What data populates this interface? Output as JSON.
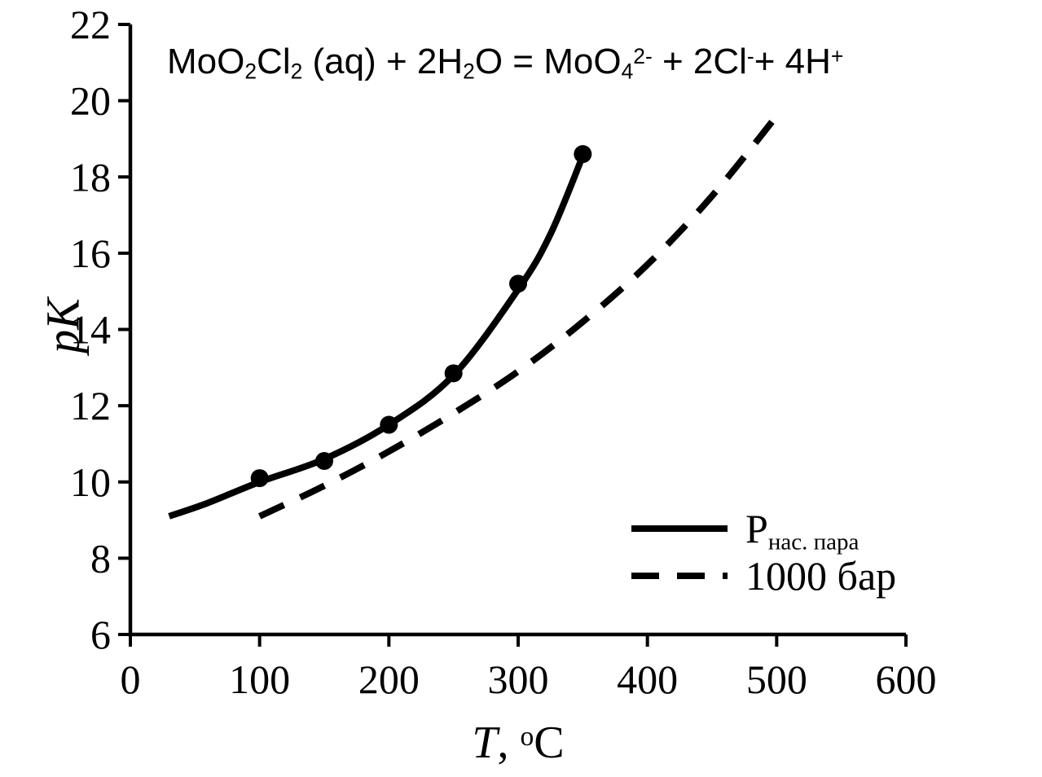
{
  "figure": {
    "background": "#ffffff",
    "ink_color": "#000000"
  },
  "chart_data": {
    "type": "line+scatter",
    "title_text": "MoO2Cl2 (aq) + 2H2O = MoO4^2- + 2Cl^- + 4H^+",
    "title_rich": [
      {
        "text": "MoO"
      },
      {
        "text": "2",
        "style": "sub"
      },
      {
        "text": "Cl"
      },
      {
        "text": "2",
        "style": "sub"
      },
      {
        "text": " (aq) + 2H"
      },
      {
        "text": "2",
        "style": "sub"
      },
      {
        "text": "O = MoO"
      },
      {
        "text": "4",
        "style": "sub"
      },
      {
        "text": "2-",
        "style": "sup"
      },
      {
        "text": " + 2Cl"
      },
      {
        "text": "-",
        "style": "sup"
      },
      {
        "text": "+ 4H"
      },
      {
        "text": "+",
        "style": "sup"
      }
    ],
    "xlabel_text": "T, °C",
    "xlabel_rich": [
      {
        "text": "T",
        "style": "italic"
      },
      {
        "text": ", "
      },
      {
        "text": "o",
        "style": "sup"
      },
      {
        "text": "C"
      }
    ],
    "ylabel": "pK",
    "xlim": [
      0,
      600
    ],
    "ylim": [
      6,
      22
    ],
    "xticks": [
      0,
      100,
      200,
      300,
      400,
      500,
      600
    ],
    "yticks": [
      6,
      8,
      10,
      12,
      14,
      16,
      18,
      20,
      22
    ],
    "grid": false,
    "legend_position": "lower right",
    "series": [
      {
        "name": "P нас. пара",
        "legend_rich": [
          {
            "text": "P"
          },
          {
            "text": "нас. пара",
            "style": "sub"
          }
        ],
        "line_style": "solid",
        "line_width": 8,
        "x": [
          30,
          60,
          100,
          150,
          200,
          250,
          300,
          325,
          350
        ],
        "y": [
          9.1,
          9.45,
          10.0,
          10.6,
          11.5,
          12.8,
          15.05,
          16.5,
          18.55
        ]
      },
      {
        "name": "1000 бар",
        "legend_rich": [
          {
            "text": "1000 бар"
          }
        ],
        "line_style": "dashed",
        "line_width": 8,
        "x": [
          100,
          150,
          200,
          250,
          300,
          350,
          400,
          450,
          500
        ],
        "y": [
          9.1,
          9.9,
          10.8,
          11.8,
          12.9,
          14.2,
          15.7,
          17.5,
          19.6
        ]
      }
    ],
    "scatter_points": {
      "belongs_to_series": "P нас. пара",
      "marker": "filled-circle",
      "x": [
        100,
        150,
        200,
        250,
        300,
        350
      ],
      "y": [
        10.1,
        10.55,
        11.5,
        12.85,
        15.2,
        18.6
      ]
    }
  }
}
